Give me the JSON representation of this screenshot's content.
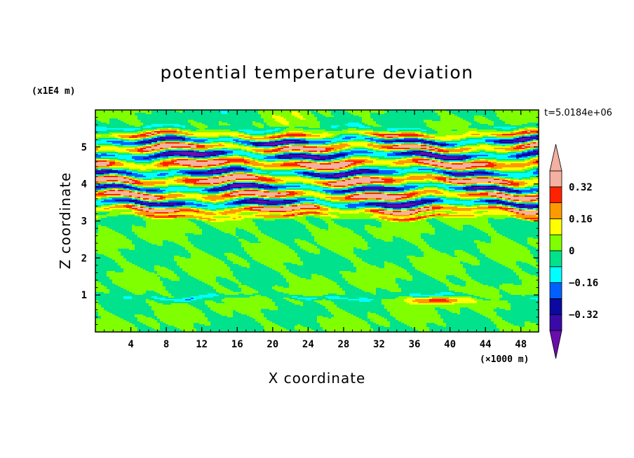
{
  "chart_data": {
    "type": "heatmap",
    "title": "potential temperature deviation",
    "xlabel": "X coordinate",
    "ylabel": "Z coordinate",
    "x_unit": "(×1000 m)",
    "y_unit": "(x1E4 m)",
    "time_label": "t=5.0184e+06",
    "xlim": [
      0,
      50
    ],
    "ylim": [
      0,
      6
    ],
    "x_ticks": [
      4,
      8,
      12,
      16,
      20,
      24,
      28,
      32,
      36,
      40,
      44,
      48
    ],
    "x_tick_labels": [
      "4",
      "8",
      "12",
      "16",
      "20",
      "24",
      "28",
      "32",
      "36",
      "40",
      "44",
      "48"
    ],
    "y_ticks": [
      1,
      2,
      3,
      4,
      5
    ],
    "y_tick_labels": [
      "1",
      "2",
      "3",
      "4",
      "5"
    ],
    "colorbar": {
      "levels": [
        -0.4,
        -0.32,
        -0.24,
        -0.16,
        -0.08,
        0,
        0.08,
        0.16,
        0.24,
        0.32,
        0.4
      ],
      "labels": [
        {
          "value": 0.32,
          "text": "0.32"
        },
        {
          "value": 0.16,
          "text": "0.16"
        },
        {
          "value": 0,
          "text": "0"
        },
        {
          "value": -0.16,
          "text": "−0.16"
        },
        {
          "value": -0.32,
          "text": "−0.32"
        }
      ],
      "colors": [
        "#6a0dad",
        "#3a0aa8",
        "#0a0aa0",
        "#0060ff",
        "#00ffff",
        "#00e38c",
        "#80ff00",
        "#ffff00",
        "#ff9900",
        "#ff2200",
        "#f4b0a0"
      ],
      "extend": "both"
    },
    "bands": [
      {
        "y": 0.95,
        "amp": 0.05,
        "value": -0.12
      },
      {
        "y": 3.12,
        "amp": 0.05,
        "value": 0.28
      },
      {
        "y": 3.3,
        "amp": 0.08,
        "value": 0.45
      },
      {
        "y": 3.48,
        "amp": 0.1,
        "value": -0.4
      },
      {
        "y": 3.7,
        "amp": 0.12,
        "value": 0.45
      },
      {
        "y": 3.88,
        "amp": 0.1,
        "value": -0.45
      },
      {
        "y": 4.1,
        "amp": 0.12,
        "value": 0.45
      },
      {
        "y": 4.3,
        "amp": 0.1,
        "value": -0.4
      },
      {
        "y": 4.55,
        "amp": 0.12,
        "value": 0.45
      },
      {
        "y": 4.78,
        "amp": 0.1,
        "value": -0.45
      },
      {
        "y": 4.98,
        "amp": 0.1,
        "value": 0.4
      },
      {
        "y": 5.15,
        "amp": 0.08,
        "value": -0.4
      },
      {
        "y": 5.32,
        "amp": 0.07,
        "value": 0.3
      },
      {
        "y": 5.5,
        "amp": 0.05,
        "value": -0.1
      }
    ],
    "blobs": [
      {
        "x": 38.5,
        "y": 0.85,
        "rx": 3,
        "ry": 0.1,
        "value": 0.3
      },
      {
        "x": 45,
        "y": 1.2,
        "rx": 4,
        "ry": 0.12,
        "value": 0.03
      }
    ]
  }
}
